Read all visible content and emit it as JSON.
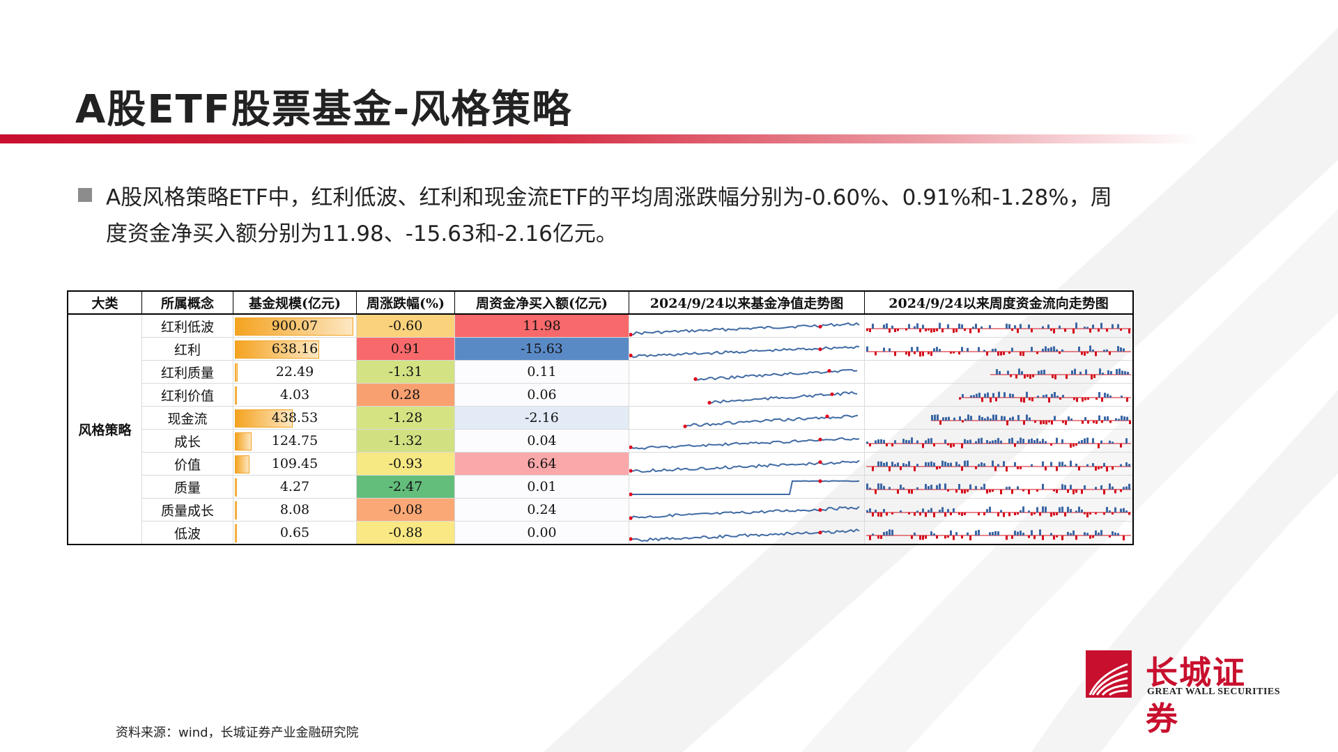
{
  "slide": {
    "title": "A股ETF股票基金-风格策略",
    "bullet": "A股风格策略ETF中，红利低波、红利和现金流ETF的平均周涨跌幅分别为-0.60%、0.91%和-1.28%，周度资金净买入额分别为11.98、-15.63和-2.16亿元。",
    "source": "资料来源：wind，长城证券产业金融研究院"
  },
  "logo": {
    "name_cn": "长城证券",
    "name_en": "GREAT WALL SECURITIES"
  },
  "table": {
    "headers": [
      "大类",
      "所属概念",
      "基金规模(亿元)",
      "周涨跌幅(%)",
      "周资金净买入额(亿元)",
      "2024/9/24以来基金净值走势图",
      "2024/9/24以来周度资金流向走势图"
    ],
    "category": "风格策略",
    "rows": [
      {
        "concept": "红利低波",
        "size": "900.07",
        "size_num": 900.07,
        "ret": "-0.60",
        "flow": "11.98",
        "ret_color": "#fbd27c",
        "flow_color": "#f8696b"
      },
      {
        "concept": "红利",
        "size": "638.16",
        "size_num": 638.16,
        "ret": "0.91",
        "flow": "-15.63",
        "ret_color": "#f8696b",
        "flow_color": "#5a8ac6"
      },
      {
        "concept": "红利质量",
        "size": "22.49",
        "size_num": 22.49,
        "ret": "-1.31",
        "flow": "0.11",
        "ret_color": "#d3e283",
        "flow_color": "#fcfcff"
      },
      {
        "concept": "红利价值",
        "size": "4.03",
        "size_num": 4.03,
        "ret": "0.28",
        "flow": "0.06",
        "ret_color": "#f9a071",
        "flow_color": "#fcfcff"
      },
      {
        "concept": "现金流",
        "size": "438.53",
        "size_num": 438.53,
        "ret": "-1.28",
        "flow": "-2.16",
        "ret_color": "#d6e383",
        "flow_color": "#e3ebf6"
      },
      {
        "concept": "成长",
        "size": "124.75",
        "size_num": 124.75,
        "ret": "-1.32",
        "flow": "0.04",
        "ret_color": "#d1e182",
        "flow_color": "#fcfcff"
      },
      {
        "concept": "价值",
        "size": "109.45",
        "size_num": 109.45,
        "ret": "-0.93",
        "flow": "6.64",
        "ret_color": "#f6e883",
        "flow_color": "#faa8aa"
      },
      {
        "concept": "质量",
        "size": "4.27",
        "size_num": 4.27,
        "ret": "-2.47",
        "flow": "0.01",
        "ret_color": "#63be7b",
        "flow_color": "#fcfcff"
      },
      {
        "concept": "质量成长",
        "size": "8.08",
        "size_num": 8.08,
        "ret": "-0.08",
        "flow": "0.24",
        "ret_color": "#fba877",
        "flow_color": "#fcfcff"
      },
      {
        "concept": "低波",
        "size": "0.65",
        "size_num": 0.65,
        "ret": "-0.88",
        "flow": "0.00",
        "ret_color": "#f9e883",
        "flow_color": "#fcfcff"
      }
    ]
  },
  "colors": {
    "brand_red": "#c8102e",
    "spark_line": "#3f6aa3",
    "spark_marker": "#e0001b",
    "flow_positive": "#3a66a4",
    "flow_negative": "#d40b1a",
    "databar": "#f4a320"
  }
}
